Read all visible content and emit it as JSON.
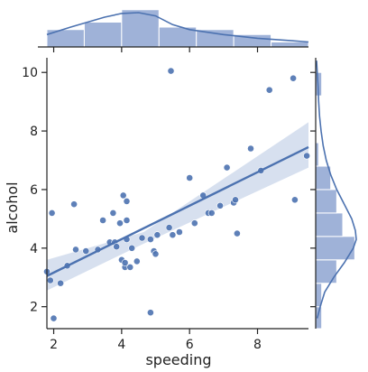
{
  "chart_data": {
    "type": "scatter",
    "title": "",
    "xlabel": "speeding",
    "ylabel": "alcohol",
    "xlim": [
      1.8,
      9.5
    ],
    "ylim": [
      1.25,
      10.5
    ],
    "xticks": [
      2,
      4,
      6,
      8
    ],
    "yticks": [
      2,
      4,
      6,
      8,
      10
    ],
    "grid": false,
    "colors": {
      "points": "#4c72b0",
      "line": "#4c72b0",
      "ci_band": "#b7c6e2",
      "hist": "#9fb2d8"
    },
    "points": [
      [
        1.8,
        3.2
      ],
      [
        1.9,
        2.9
      ],
      [
        1.95,
        5.2
      ],
      [
        2.0,
        1.6
      ],
      [
        2.2,
        2.8
      ],
      [
        2.4,
        3.4
      ],
      [
        2.6,
        5.5
      ],
      [
        2.65,
        3.95
      ],
      [
        2.95,
        3.9
      ],
      [
        3.3,
        3.95
      ],
      [
        3.45,
        4.95
      ],
      [
        3.65,
        4.2
      ],
      [
        3.75,
        5.2
      ],
      [
        3.8,
        4.2
      ],
      [
        3.85,
        4.05
      ],
      [
        3.95,
        4.85
      ],
      [
        4.0,
        3.6
      ],
      [
        4.05,
        5.8
      ],
      [
        4.1,
        3.35
      ],
      [
        4.1,
        3.5
      ],
      [
        4.15,
        4.3
      ],
      [
        4.15,
        5.6
      ],
      [
        4.15,
        4.95
      ],
      [
        4.25,
        3.35
      ],
      [
        4.3,
        4.0
      ],
      [
        4.45,
        3.55
      ],
      [
        4.6,
        4.35
      ],
      [
        4.85,
        1.8
      ],
      [
        4.85,
        4.3
      ],
      [
        4.95,
        3.9
      ],
      [
        5.0,
        3.8
      ],
      [
        5.05,
        4.45
      ],
      [
        5.4,
        4.7
      ],
      [
        5.45,
        10.05
      ],
      [
        5.5,
        4.45
      ],
      [
        5.7,
        4.55
      ],
      [
        6.0,
        6.4
      ],
      [
        6.15,
        4.85
      ],
      [
        6.4,
        5.8
      ],
      [
        6.55,
        5.2
      ],
      [
        6.65,
        5.2
      ],
      [
        6.9,
        5.45
      ],
      [
        7.1,
        6.75
      ],
      [
        7.3,
        5.55
      ],
      [
        7.35,
        5.65
      ],
      [
        7.4,
        4.5
      ],
      [
        7.8,
        7.4
      ],
      [
        8.1,
        6.65
      ],
      [
        8.35,
        9.4
      ],
      [
        9.05,
        9.8
      ],
      [
        9.1,
        5.65
      ],
      [
        9.45,
        7.15
      ]
    ],
    "regression": {
      "x": [
        1.8,
        9.5
      ],
      "y": [
        3.05,
        7.45
      ]
    },
    "ci_band": {
      "x": [
        1.8,
        4.65,
        9.5
      ],
      "lower": [
        2.55,
        4.15,
        6.75
      ],
      "upper": [
        3.6,
        4.55,
        8.3
      ]
    },
    "marginal_x": {
      "bin_edges": [
        1.8,
        2.9,
        4.0,
        5.1,
        6.2,
        7.3,
        8.4,
        9.5
      ],
      "counts": [
        7,
        10,
        15,
        8,
        7,
        5,
        2
      ],
      "kde_x": [
        1.8,
        2.5,
        3.5,
        4.0,
        4.5,
        5.0,
        5.5,
        6.0,
        7.0,
        8.0,
        9.0,
        9.5
      ],
      "kde_y": [
        5.0,
        8.0,
        12.0,
        13.5,
        13.8,
        12.5,
        9.0,
        7.0,
        5.0,
        3.5,
        2.5,
        2.0
      ]
    },
    "marginal_y": {
      "bin_edges": [
        1.25,
        2.0,
        2.8,
        3.6,
        4.4,
        5.2,
        6.0,
        6.8,
        7.6,
        8.4,
        9.2,
        10.0
      ],
      "counts": [
        2,
        2,
        7,
        13,
        9,
        7,
        5,
        1,
        0,
        0,
        2
      ],
      "kde_y": [
        1.6,
        2.0,
        2.5,
        3.0,
        3.5,
        4.0,
        4.3,
        4.6,
        5.0,
        5.5,
        6.0,
        6.5,
        7.0,
        7.5,
        8.0,
        8.5,
        9.0,
        9.5,
        10.0,
        10.4
      ],
      "kde_x": [
        0.5,
        1.5,
        3.0,
        6.0,
        9.5,
        12.5,
        13.5,
        13.2,
        12.0,
        9.5,
        7.0,
        5.0,
        3.5,
        2.5,
        1.8,
        1.3,
        1.0,
        0.8,
        0.5,
        0.3
      ]
    }
  }
}
